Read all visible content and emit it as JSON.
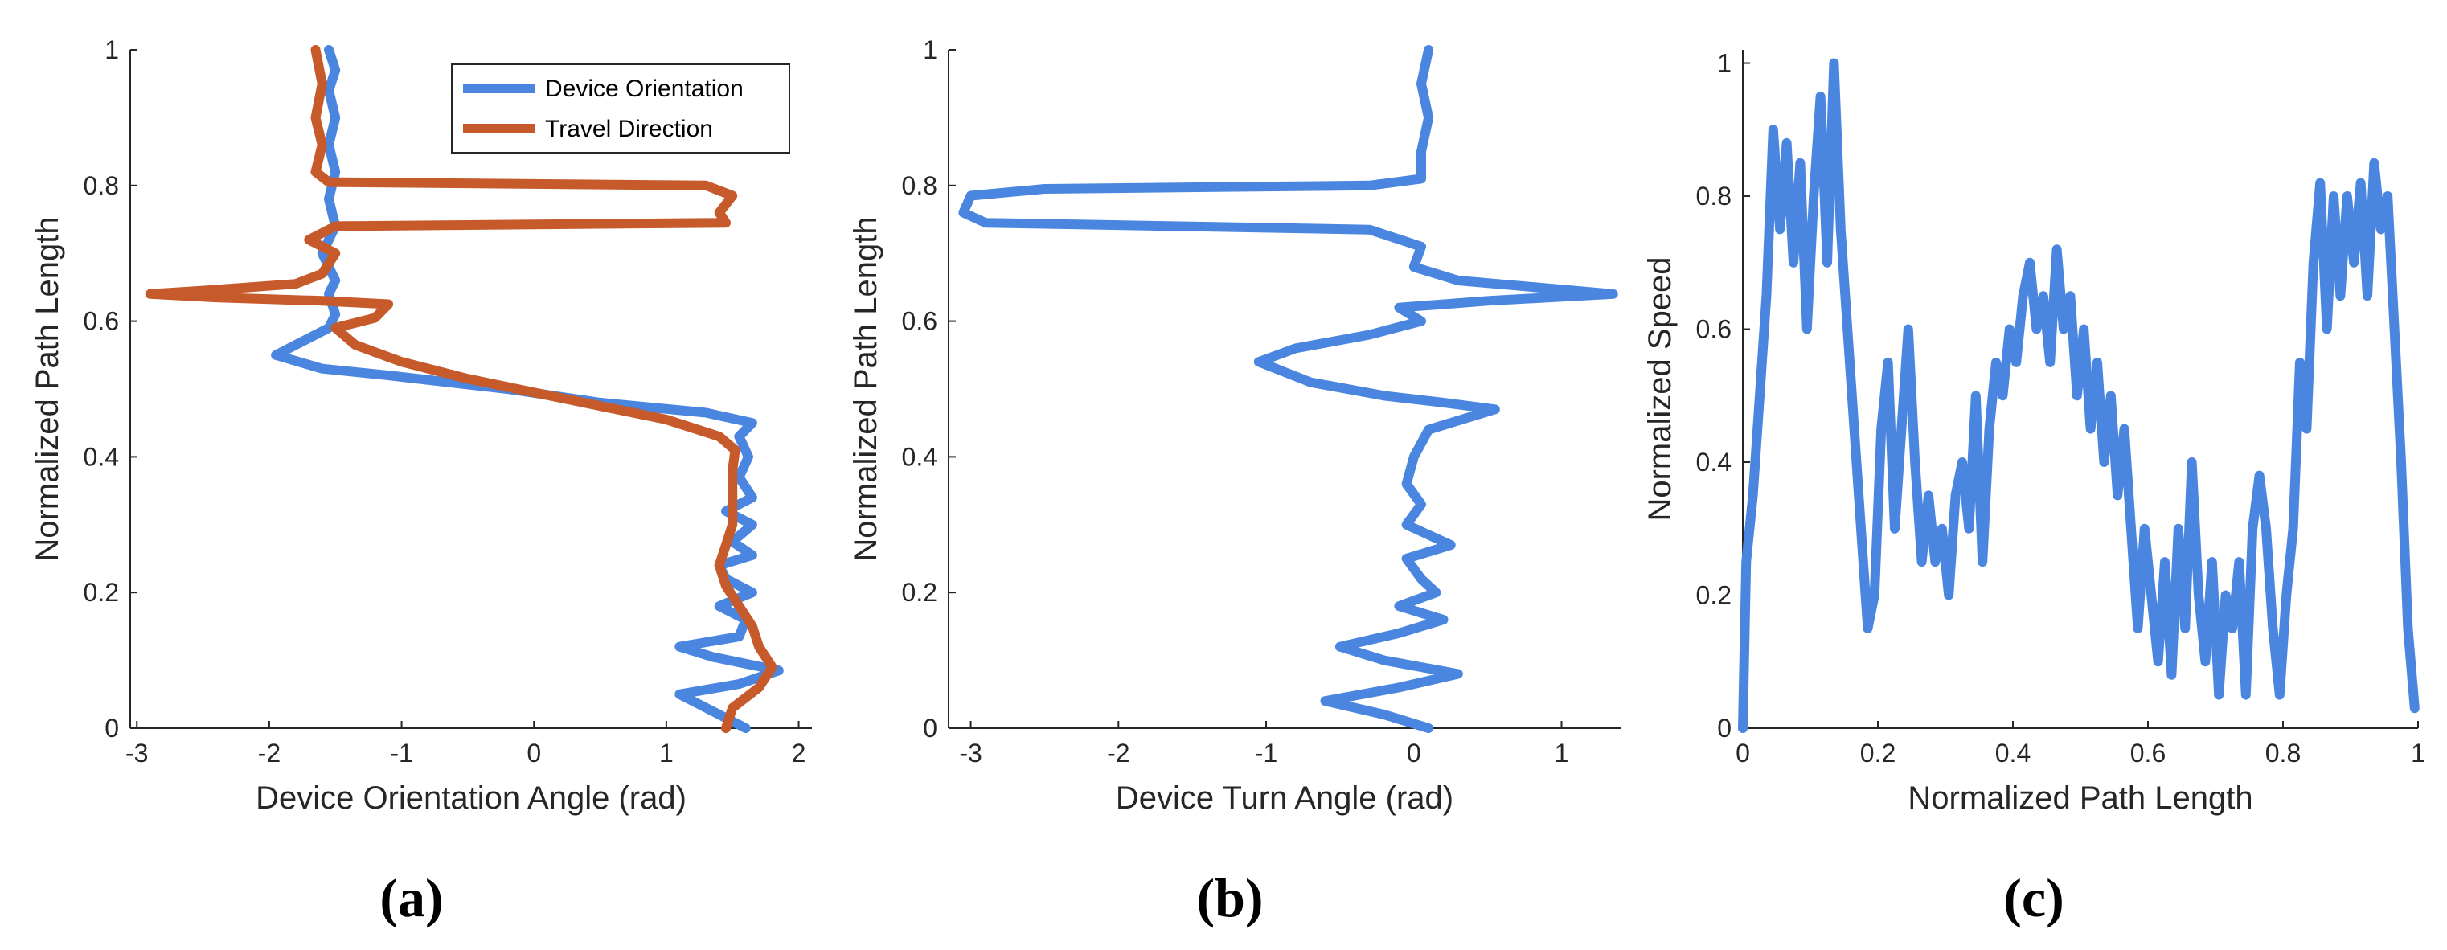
{
  "colors": {
    "blue": "#4a86e0",
    "orange": "#c65a2a",
    "axis": "#262626"
  },
  "chart_data": [
    {
      "type": "line",
      "panel": "a",
      "caption": "(a)",
      "xlabel": "Device Orientation Angle (rad)",
      "ylabel": "Normalized Path Length",
      "xlim": [
        -3.05,
        2.1
      ],
      "ylim": [
        0,
        1
      ],
      "xticks": [
        -3,
        -2,
        -1,
        0,
        1,
        2
      ],
      "yticks": [
        0,
        0.2,
        0.4,
        0.6,
        0.8,
        1
      ],
      "ytick_labels": [
        "0",
        "0.2",
        "0.4",
        "0.6",
        "0.8",
        "1"
      ],
      "legend": {
        "position": "top-right",
        "entries": [
          "Device Orientation",
          "Travel Direction"
        ]
      },
      "series": [
        {
          "name": "Device Orientation",
          "color": "blue",
          "points": [
            [
              1.6,
              0.0
            ],
            [
              1.3,
              0.03
            ],
            [
              1.1,
              0.05
            ],
            [
              1.55,
              0.065
            ],
            [
              1.85,
              0.085
            ],
            [
              1.35,
              0.105
            ],
            [
              1.1,
              0.12
            ],
            [
              1.55,
              0.135
            ],
            [
              1.6,
              0.16
            ],
            [
              1.4,
              0.18
            ],
            [
              1.65,
              0.2
            ],
            [
              1.45,
              0.22
            ],
            [
              1.4,
              0.24
            ],
            [
              1.65,
              0.255
            ],
            [
              1.5,
              0.275
            ],
            [
              1.65,
              0.3
            ],
            [
              1.45,
              0.32
            ],
            [
              1.65,
              0.34
            ],
            [
              1.55,
              0.37
            ],
            [
              1.62,
              0.4
            ],
            [
              1.55,
              0.43
            ],
            [
              1.65,
              0.45
            ],
            [
              1.3,
              0.465
            ],
            [
              0.5,
              0.48
            ],
            [
              -0.2,
              0.5
            ],
            [
              -1.1,
              0.52
            ],
            [
              -1.6,
              0.53
            ],
            [
              -1.95,
              0.55
            ],
            [
              -1.75,
              0.57
            ],
            [
              -1.55,
              0.59
            ],
            [
              -1.5,
              0.61
            ],
            [
              -1.55,
              0.64
            ],
            [
              -1.5,
              0.66
            ],
            [
              -1.6,
              0.7
            ],
            [
              -1.5,
              0.74
            ],
            [
              -1.55,
              0.78
            ],
            [
              -1.5,
              0.82
            ],
            [
              -1.55,
              0.86
            ],
            [
              -1.5,
              0.9
            ],
            [
              -1.55,
              0.94
            ],
            [
              -1.5,
              0.97
            ],
            [
              -1.55,
              1.0
            ]
          ]
        },
        {
          "name": "Travel Direction",
          "color": "orange",
          "points": [
            [
              1.45,
              0.0
            ],
            [
              1.5,
              0.03
            ],
            [
              1.7,
              0.06
            ],
            [
              1.8,
              0.09
            ],
            [
              1.7,
              0.12
            ],
            [
              1.65,
              0.15
            ],
            [
              1.55,
              0.18
            ],
            [
              1.45,
              0.21
            ],
            [
              1.4,
              0.24
            ],
            [
              1.45,
              0.27
            ],
            [
              1.5,
              0.3
            ],
            [
              1.5,
              0.34
            ],
            [
              1.5,
              0.38
            ],
            [
              1.52,
              0.41
            ],
            [
              1.4,
              0.43
            ],
            [
              1.0,
              0.455
            ],
            [
              0.5,
              0.475
            ],
            [
              0.0,
              0.495
            ],
            [
              -0.5,
              0.515
            ],
            [
              -1.0,
              0.54
            ],
            [
              -1.35,
              0.565
            ],
            [
              -1.5,
              0.59
            ],
            [
              -1.2,
              0.605
            ],
            [
              -1.1,
              0.625
            ],
            [
              -1.6,
              0.63
            ],
            [
              -2.4,
              0.635
            ],
            [
              -2.9,
              0.64
            ],
            [
              -2.5,
              0.645
            ],
            [
              -1.8,
              0.655
            ],
            [
              -1.6,
              0.67
            ],
            [
              -1.5,
              0.7
            ],
            [
              -1.7,
              0.72
            ],
            [
              -1.5,
              0.74
            ],
            [
              1.45,
              0.745
            ],
            [
              1.4,
              0.76
            ],
            [
              1.5,
              0.785
            ],
            [
              1.3,
              0.8
            ],
            [
              -1.55,
              0.805
            ],
            [
              -1.65,
              0.82
            ],
            [
              -1.6,
              0.86
            ],
            [
              -1.65,
              0.9
            ],
            [
              -1.6,
              0.95
            ],
            [
              -1.65,
              1.0
            ]
          ]
        }
      ]
    },
    {
      "type": "line",
      "panel": "b",
      "caption": "(b)",
      "xlabel": "Device Turn Angle (rad)",
      "ylabel": "Normalized Path Length",
      "xlim": [
        -3.15,
        1.4
      ],
      "ylim": [
        0,
        1
      ],
      "xticks": [
        -3,
        -2,
        -1,
        0,
        1
      ],
      "yticks": [
        0,
        0.2,
        0.4,
        0.6,
        0.8,
        1
      ],
      "ytick_labels": [
        "0",
        "0.2",
        "0.4",
        "0.6",
        "0.8",
        "1"
      ],
      "series": [
        {
          "name": "Device Turn Angle",
          "color": "blue",
          "points": [
            [
              0.1,
              0.0
            ],
            [
              -0.2,
              0.02
            ],
            [
              -0.6,
              0.04
            ],
            [
              -0.1,
              0.06
            ],
            [
              0.3,
              0.08
            ],
            [
              -0.2,
              0.1
            ],
            [
              -0.5,
              0.12
            ],
            [
              -0.1,
              0.14
            ],
            [
              0.2,
              0.16
            ],
            [
              -0.1,
              0.18
            ],
            [
              0.15,
              0.2
            ],
            [
              0.05,
              0.22
            ],
            [
              -0.05,
              0.25
            ],
            [
              0.25,
              0.27
            ],
            [
              -0.05,
              0.3
            ],
            [
              0.05,
              0.33
            ],
            [
              -0.05,
              0.36
            ],
            [
              0.0,
              0.4
            ],
            [
              0.05,
              0.42
            ],
            [
              0.1,
              0.44
            ],
            [
              0.55,
              0.47
            ],
            [
              0.2,
              0.48
            ],
            [
              -0.2,
              0.49
            ],
            [
              -0.7,
              0.51
            ],
            [
              -1.05,
              0.54
            ],
            [
              -0.8,
              0.56
            ],
            [
              -0.3,
              0.58
            ],
            [
              0.05,
              0.6
            ],
            [
              -0.1,
              0.62
            ],
            [
              0.5,
              0.63
            ],
            [
              1.35,
              0.64
            ],
            [
              0.3,
              0.66
            ],
            [
              0.0,
              0.68
            ],
            [
              0.05,
              0.71
            ],
            [
              -0.3,
              0.735
            ],
            [
              -2.9,
              0.745
            ],
            [
              -3.05,
              0.76
            ],
            [
              -3.0,
              0.785
            ],
            [
              -2.5,
              0.795
            ],
            [
              -0.3,
              0.8
            ],
            [
              0.05,
              0.81
            ],
            [
              0.05,
              0.85
            ],
            [
              0.1,
              0.9
            ],
            [
              0.05,
              0.95
            ],
            [
              0.1,
              1.0
            ]
          ]
        }
      ]
    },
    {
      "type": "line",
      "panel": "c",
      "caption": "(c)",
      "xlabel": "Normalized Path Length",
      "ylabel": "Normalized Speed",
      "xlim": [
        0,
        1
      ],
      "ylim": [
        0,
        1.02
      ],
      "xticks": [
        0,
        0.2,
        0.4,
        0.6,
        0.8,
        1
      ],
      "xtick_labels": [
        "0",
        "0.2",
        "0.4",
        "0.6",
        "0.8",
        "1"
      ],
      "yticks": [
        0,
        0.2,
        0.4,
        0.6,
        0.8,
        1
      ],
      "ytick_labels": [
        "0",
        "0.2",
        "0.4",
        "0.6",
        "0.8",
        "1"
      ],
      "series": [
        {
          "name": "Normalized Speed",
          "color": "blue",
          "points": [
            [
              0.0,
              0.0
            ],
            [
              0.005,
              0.25
            ],
            [
              0.015,
              0.35
            ],
            [
              0.025,
              0.5
            ],
            [
              0.035,
              0.65
            ],
            [
              0.045,
              0.9
            ],
            [
              0.055,
              0.75
            ],
            [
              0.065,
              0.88
            ],
            [
              0.075,
              0.7
            ],
            [
              0.085,
              0.85
            ],
            [
              0.095,
              0.6
            ],
            [
              0.105,
              0.8
            ],
            [
              0.115,
              0.95
            ],
            [
              0.125,
              0.7
            ],
            [
              0.135,
              1.0
            ],
            [
              0.145,
              0.75
            ],
            [
              0.155,
              0.6
            ],
            [
              0.165,
              0.45
            ],
            [
              0.175,
              0.3
            ],
            [
              0.185,
              0.15
            ],
            [
              0.195,
              0.2
            ],
            [
              0.205,
              0.45
            ],
            [
              0.215,
              0.55
            ],
            [
              0.225,
              0.3
            ],
            [
              0.235,
              0.45
            ],
            [
              0.245,
              0.6
            ],
            [
              0.255,
              0.4
            ],
            [
              0.265,
              0.25
            ],
            [
              0.275,
              0.35
            ],
            [
              0.285,
              0.25
            ],
            [
              0.295,
              0.3
            ],
            [
              0.305,
              0.2
            ],
            [
              0.315,
              0.35
            ],
            [
              0.325,
              0.4
            ],
            [
              0.335,
              0.3
            ],
            [
              0.345,
              0.5
            ],
            [
              0.355,
              0.25
            ],
            [
              0.365,
              0.45
            ],
            [
              0.375,
              0.55
            ],
            [
              0.385,
              0.5
            ],
            [
              0.395,
              0.6
            ],
            [
              0.405,
              0.55
            ],
            [
              0.415,
              0.65
            ],
            [
              0.425,
              0.7
            ],
            [
              0.435,
              0.6
            ],
            [
              0.445,
              0.65
            ],
            [
              0.455,
              0.55
            ],
            [
              0.465,
              0.72
            ],
            [
              0.475,
              0.6
            ],
            [
              0.485,
              0.65
            ],
            [
              0.495,
              0.5
            ],
            [
              0.505,
              0.6
            ],
            [
              0.515,
              0.45
            ],
            [
              0.525,
              0.55
            ],
            [
              0.535,
              0.4
            ],
            [
              0.545,
              0.5
            ],
            [
              0.555,
              0.35
            ],
            [
              0.565,
              0.45
            ],
            [
              0.575,
              0.3
            ],
            [
              0.585,
              0.15
            ],
            [
              0.595,
              0.3
            ],
            [
              0.605,
              0.2
            ],
            [
              0.615,
              0.1
            ],
            [
              0.625,
              0.25
            ],
            [
              0.635,
              0.08
            ],
            [
              0.645,
              0.3
            ],
            [
              0.655,
              0.15
            ],
            [
              0.665,
              0.4
            ],
            [
              0.675,
              0.2
            ],
            [
              0.685,
              0.1
            ],
            [
              0.695,
              0.25
            ],
            [
              0.705,
              0.05
            ],
            [
              0.715,
              0.2
            ],
            [
              0.725,
              0.15
            ],
            [
              0.735,
              0.25
            ],
            [
              0.745,
              0.05
            ],
            [
              0.755,
              0.3
            ],
            [
              0.765,
              0.38
            ],
            [
              0.775,
              0.3
            ],
            [
              0.785,
              0.15
            ],
            [
              0.795,
              0.05
            ],
            [
              0.805,
              0.2
            ],
            [
              0.815,
              0.3
            ],
            [
              0.825,
              0.55
            ],
            [
              0.835,
              0.45
            ],
            [
              0.845,
              0.7
            ],
            [
              0.855,
              0.82
            ],
            [
              0.865,
              0.6
            ],
            [
              0.875,
              0.8
            ],
            [
              0.885,
              0.65
            ],
            [
              0.895,
              0.8
            ],
            [
              0.905,
              0.7
            ],
            [
              0.915,
              0.82
            ],
            [
              0.925,
              0.65
            ],
            [
              0.935,
              0.85
            ],
            [
              0.945,
              0.75
            ],
            [
              0.955,
              0.8
            ],
            [
              0.965,
              0.6
            ],
            [
              0.975,
              0.4
            ],
            [
              0.985,
              0.15
            ],
            [
              0.995,
              0.03
            ]
          ]
        }
      ]
    }
  ]
}
